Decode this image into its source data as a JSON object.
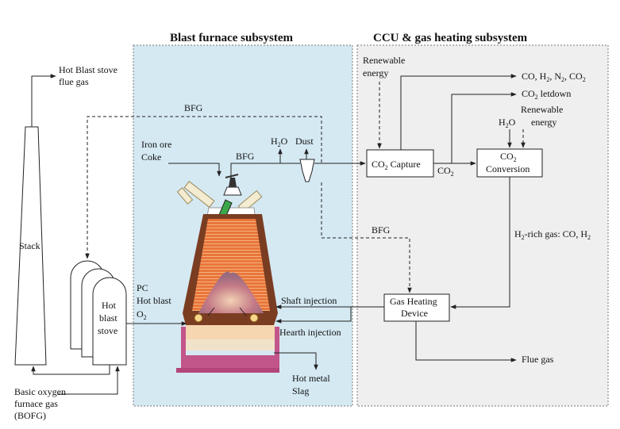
{
  "headers": {
    "blast_furnace": "Blast furnace subsystem",
    "ccu": "CCU & gas heating subsystem"
  },
  "labels": {
    "hot_blast_flue_1": "Hot Blast stove",
    "hot_blast_flue_2": "flue gas",
    "bfg_top": "BFG",
    "stack": "Stack",
    "hot_blast_stove_1": "Hot",
    "hot_blast_stove_2": "blast",
    "hot_blast_stove_3": "stove",
    "bofg_1": "Basic oxygen",
    "bofg_2": "furnace gas",
    "bofg_3": "(BOFG)",
    "iron_ore": "Iron ore",
    "coke": "Coke",
    "bfg_furnace": "BFG",
    "h2o": "H",
    "h2o_sub": "2",
    "h2o_end": "O",
    "dust": "Dust",
    "pc": "PC",
    "hot_blast": "Hot blast",
    "o2": "O",
    "o2_sub": "2",
    "hot_metal": "Hot metal",
    "slag": "Slag",
    "shaft_injection": "Shaft injection",
    "hearth_injection": "Hearth injection",
    "renewable_energy_1a": "Renewable",
    "renewable_energy_1b": "energy",
    "co2_capture": "CO",
    "co2_capture_sub": "2",
    "co2_capture_end": " Capture",
    "co2_stream": "CO",
    "co2_stream_sub": "2",
    "syngas_prefix": "CO, H",
    "syngas_mid1": ", N",
    "syngas_mid2": ", CO",
    "syngas_sub": "2",
    "co2_letdown": "CO",
    "co2_letdown_sub": "2",
    "co2_letdown_end": " letdown",
    "renewable_energy_2a": "Renewable",
    "renewable_energy_2b": "energy",
    "h2o_conv": "H",
    "h2o_conv_sub": "2",
    "h2o_conv_end": "O",
    "co2_conversion_1": "CO",
    "co2_conversion_1_sub": "2",
    "co2_conversion_2": "Conversion",
    "bfg_mid": "BFG",
    "h2_rich_prefix": "H",
    "h2_rich_sub": "2",
    "h2_rich_mid": "-rich gas: CO, H",
    "h2_rich_sub2": "2",
    "gas_heating_1": "Gas Heating",
    "gas_heating_2": "Device",
    "flue_gas": "Flue gas"
  },
  "colors": {
    "bf_panel": "#d5e9f3",
    "ccu_panel": "#efefef",
    "refractory": "#8a4a2a",
    "furnace_inner": "#e8763a",
    "hearth_base": "#b3457a"
  }
}
